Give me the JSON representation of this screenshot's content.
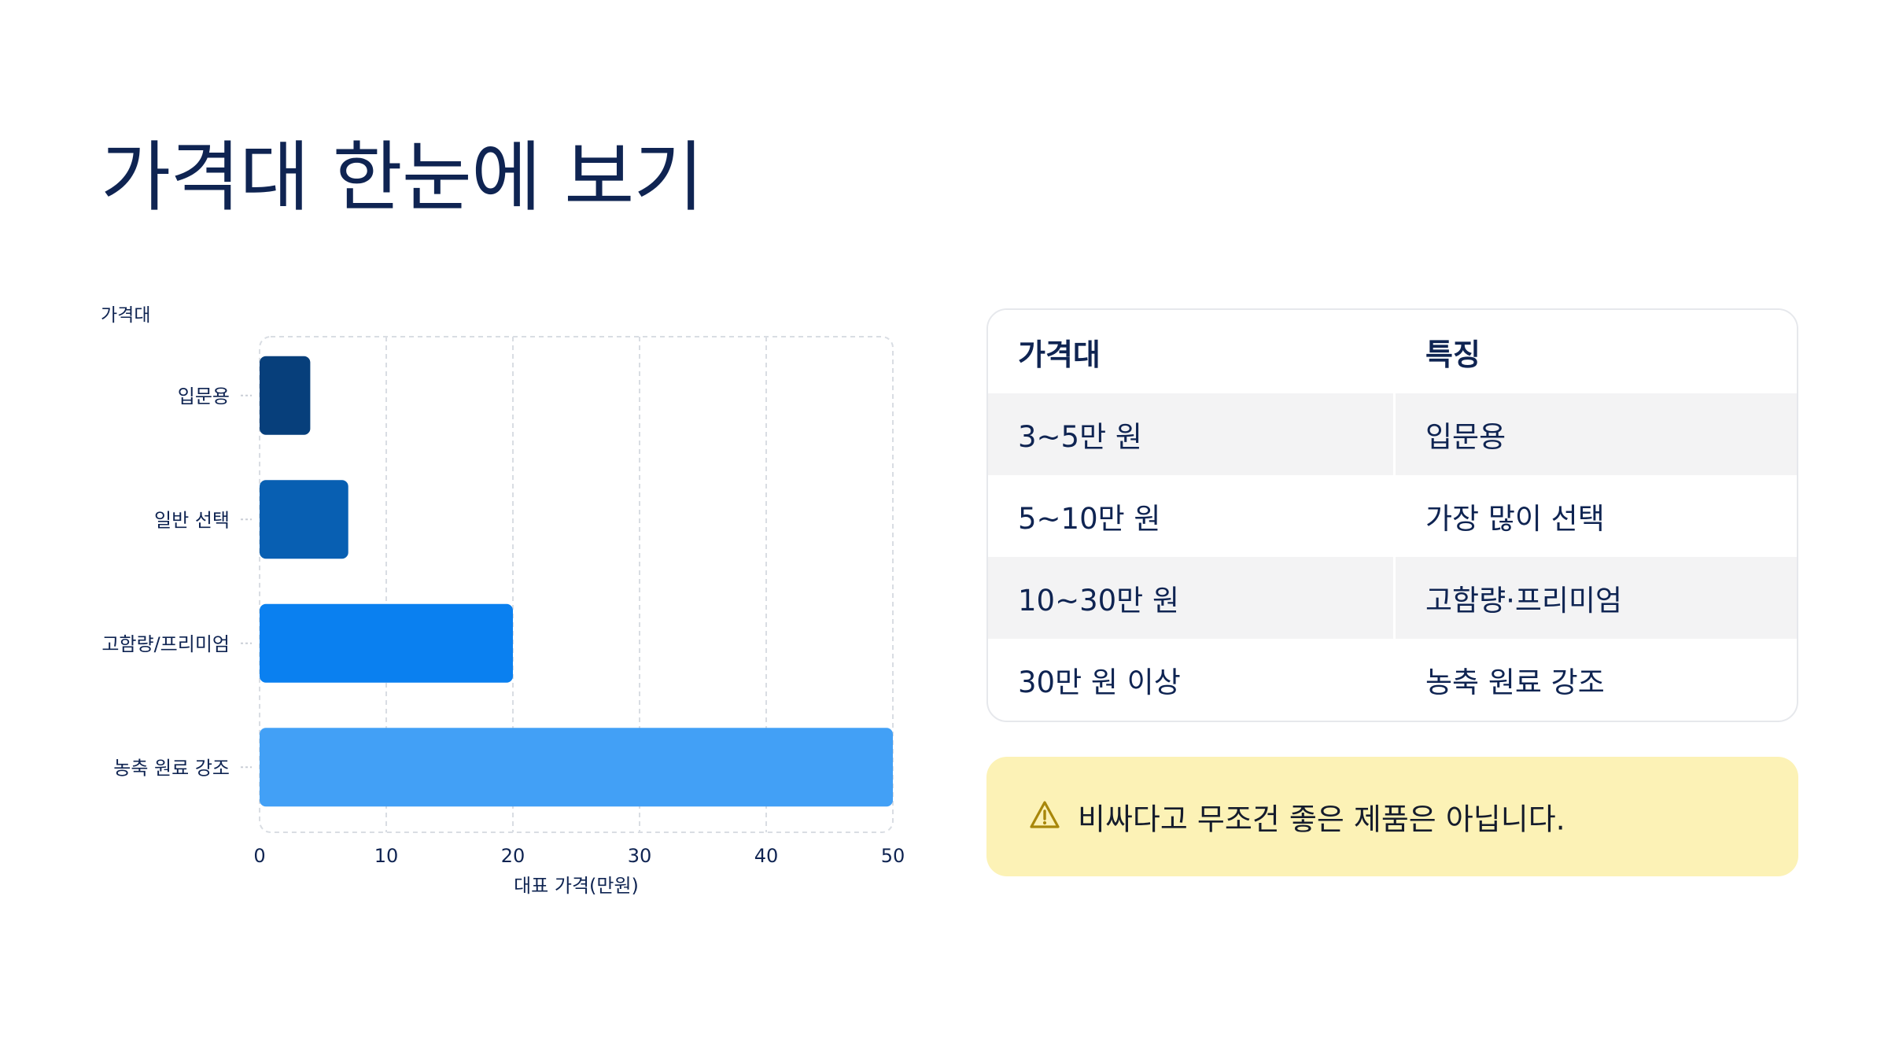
{
  "page": {
    "title": "가격대 한눈에 보기"
  },
  "chart_data": {
    "type": "bar",
    "orientation": "horizontal",
    "categories": [
      "입문용",
      "일반 선택",
      "고함량/프리미엄",
      "농축 원료 강조"
    ],
    "values": [
      4,
      7,
      20,
      50
    ],
    "xlabel": "대표 가격(만원)",
    "ylabel": "가격대",
    "xlim": [
      0,
      50
    ],
    "xticks": [
      0,
      10,
      20,
      30,
      40,
      50
    ],
    "grid": true,
    "colors": [
      "#073f7b",
      "#085fb2",
      "#0a80f0",
      "#42a0f6"
    ]
  },
  "table": {
    "headers": [
      "가격대",
      "특징"
    ],
    "rows": [
      [
        "3~5만 원",
        "입문용"
      ],
      [
        "5~10만 원",
        "가장 많이 선택"
      ],
      [
        "10~30만 원",
        "고함량·프리미엄"
      ],
      [
        "30만 원 이상",
        "농축 원료 강조"
      ]
    ]
  },
  "note": {
    "icon": "warning-icon",
    "text": "비싸다고 무조건 좋은 제품은 아닙니다."
  }
}
